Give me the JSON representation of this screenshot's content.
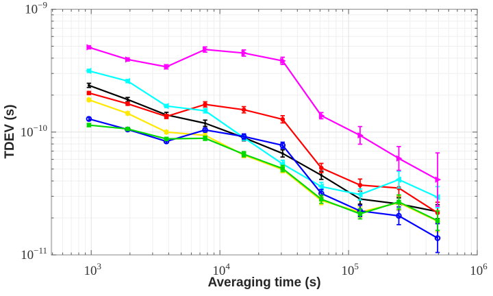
{
  "figure": {
    "background": "#ffffff"
  },
  "chart_data": {
    "type": "line",
    "title": "",
    "xlabel": "Averaging time (s)",
    "ylabel": "TDEV (s)",
    "x_scale": "log",
    "y_scale": "log",
    "xlim": [
      490,
      1000000
    ],
    "ylim": [
      1e-11,
      1e-09
    ],
    "grid": "both-minor",
    "legend": "none",
    "grid_color_major": "#e2e2e2",
    "grid_color_minor": "#efefef",
    "box_color": "#999999",
    "tick_color": "#666666",
    "x": [
      960,
      1920,
      3840,
      7680,
      15360,
      30720,
      61440,
      122880,
      245760,
      491520
    ],
    "x_ticks": [
      {
        "value": 1000,
        "base": "10",
        "exp": "3"
      },
      {
        "value": 10000,
        "base": "10",
        "exp": "4"
      },
      {
        "value": 100000,
        "base": "10",
        "exp": "5"
      },
      {
        "value": 1000000,
        "base": "10",
        "exp": "6"
      }
    ],
    "y_ticks": [
      {
        "value": 1e-09,
        "base": "10",
        "exp": "−9"
      },
      {
        "value": 1e-10,
        "base": "10",
        "exp": "−10"
      },
      {
        "value": 1e-11,
        "base": "10",
        "exp": "−11"
      }
    ],
    "series": [
      {
        "name": "series-black",
        "color": "#000000",
        "marker": "dot",
        "values": [
          2.4e-10,
          1.84e-10,
          1.38e-10,
          1.18e-10,
          9e-11,
          6.7e-11,
          4.45e-11,
          2.85e-11,
          2.6e-11,
          2.25e-11
        ],
        "err_factor": [
          1.04,
          1.04,
          1.05,
          1.06,
          1.06,
          1.07,
          1.08,
          1.1,
          1.12,
          1.14
        ]
      },
      {
        "name": "series-red",
        "color": "#ff0000",
        "marker": "circle",
        "values": [
          2.08e-10,
          1.7e-10,
          1.34e-10,
          1.68e-10,
          1.52e-10,
          1.27e-10,
          5.1e-11,
          3.7e-11,
          3.5e-11,
          2.2e-11
        ],
        "err_factor": [
          1.03,
          1.03,
          1.04,
          1.05,
          1.06,
          1.07,
          1.09,
          1.12,
          1.17,
          1.22
        ]
      },
      {
        "name": "series-cyan",
        "color": "#00ffff",
        "marker": "triangle-left",
        "values": [
          3.15e-10,
          2.6e-10,
          1.63e-10,
          1.49e-10,
          9e-11,
          5.5e-11,
          3.6e-11,
          3.1e-11,
          4.1e-11,
          2.95e-11
        ],
        "err_factor": [
          1.03,
          1.03,
          1.03,
          1.04,
          1.05,
          1.07,
          1.08,
          1.11,
          1.17,
          1.22
        ]
      },
      {
        "name": "series-yellow",
        "color": "#ffe800",
        "marker": "diamond",
        "values": [
          1.83e-10,
          1.42e-10,
          1e-10,
          9.4e-11,
          6.5e-11,
          4.95e-11,
          2.77e-11,
          2.23e-11,
          2.66e-11,
          1.88e-11
        ],
        "err_factor": [
          1.03,
          1.03,
          1.03,
          1.04,
          1.05,
          1.06,
          1.08,
          1.1,
          1.14,
          1.22
        ]
      },
      {
        "name": "series-blue",
        "color": "#0000ff",
        "marker": "circle-open",
        "values": [
          1.28e-10,
          1.05e-10,
          8.4e-11,
          1.04e-10,
          9.2e-11,
          7.8e-11,
          3.16e-11,
          2.28e-11,
          2.08e-11,
          1.37e-11
        ],
        "err_factor": [
          1.03,
          1.03,
          1.03,
          1.04,
          1.05,
          1.06,
          1.08,
          1.11,
          1.18,
          1.31
        ]
      },
      {
        "name": "series-green",
        "color": "#00d900",
        "marker": "square",
        "values": [
          1.14e-10,
          1.06e-10,
          8.8e-11,
          8.9e-11,
          6.6e-11,
          5.05e-11,
          2.84e-11,
          2.16e-11,
          2.7e-11,
          1.9e-11
        ],
        "err_factor": [
          1.03,
          1.03,
          1.03,
          1.04,
          1.05,
          1.06,
          1.08,
          1.1,
          1.14,
          1.2
        ]
      },
      {
        "name": "series-magenta",
        "color": "#ff00ff",
        "marker": "triangle-right",
        "values": [
          4.9e-10,
          3.9e-10,
          3.4e-10,
          4.7e-10,
          4.4e-10,
          3.8e-10,
          1.36e-10,
          9.4e-11,
          6.1e-11,
          4.1e-11
        ],
        "err_factor": [
          1.03,
          1.03,
          1.04,
          1.05,
          1.06,
          1.07,
          1.06,
          1.18,
          1.25,
          1.65
        ]
      }
    ]
  }
}
